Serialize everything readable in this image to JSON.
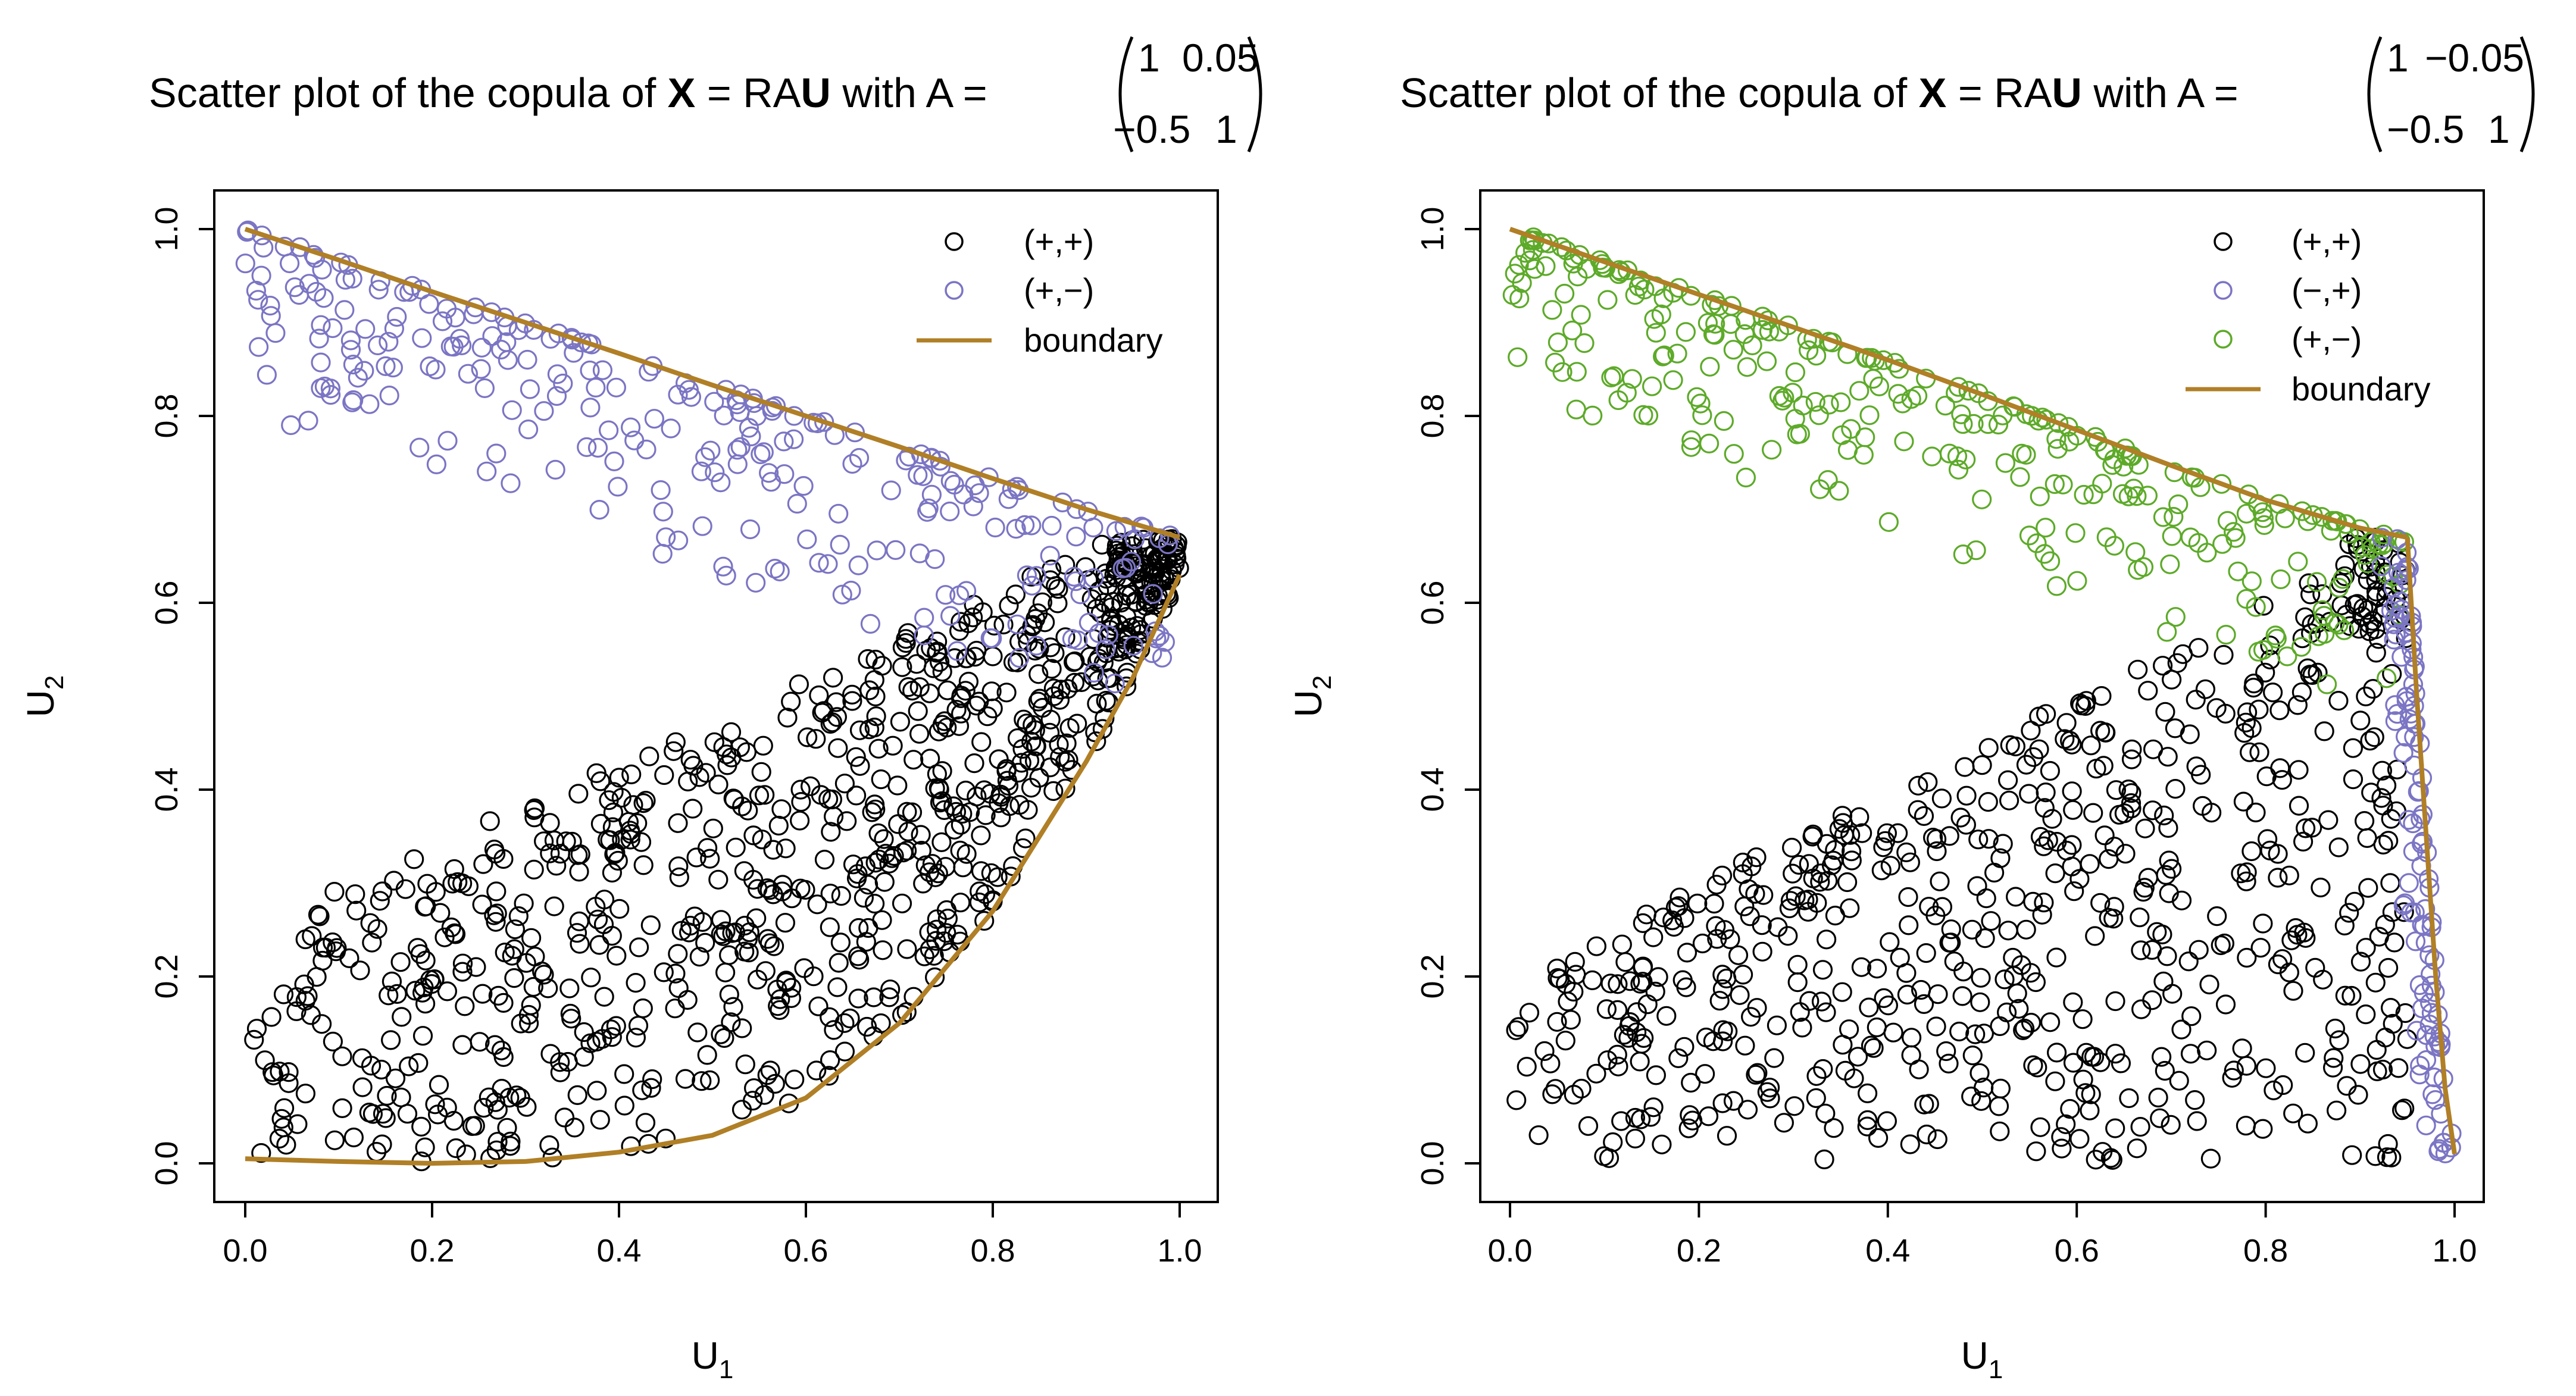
{
  "title": {
    "prefix": "Scatter plot of the copula of",
    "bold_x": "X",
    "eq_ra": "= RA",
    "bold_u": "U",
    "with_a": "with A ="
  },
  "legend_labels": {
    "pp": "(+,+)",
    "pm": "(+,−)",
    "mp": "(−,+)",
    "boundary": "boundary"
  },
  "colors": {
    "black": "#000000",
    "purple": "#7b75c4",
    "green": "#5daa29",
    "boundary": "#b07f26"
  },
  "chart_data": [
    {
      "type": "scatter",
      "title": "Scatter plot of the copula of X = RAU with A = (1 0.05; −0.5 1)",
      "matrix": {
        "a11": "1",
        "a12": "0.05",
        "a21": "−0.5",
        "a22": "1"
      },
      "xlabel": "U",
      "xlabel_sub": "1",
      "ylabel": "U",
      "ylabel_sub": "2",
      "xlim": [
        0,
        1
      ],
      "ylim": [
        0,
        1
      ],
      "xticks": [
        "0.0",
        "0.2",
        "0.4",
        "0.6",
        "0.8",
        "1.0"
      ],
      "yticks": [
        "0.0",
        "0.2",
        "0.4",
        "0.6",
        "0.8",
        "1.0"
      ],
      "legend": "top-right",
      "series": [
        {
          "name": "(+,+)",
          "kind": "points",
          "color": "black",
          "n": 800
        },
        {
          "name": "(+,−)",
          "kind": "points",
          "color": "purple",
          "n": 280
        },
        {
          "name": "boundary",
          "kind": "line",
          "color": "boundary"
        }
      ],
      "boundary_upper": [
        [
          0.0,
          1.0
        ],
        [
          0.1,
          0.967
        ],
        [
          0.2,
          0.933
        ],
        [
          0.3,
          0.9
        ],
        [
          0.4,
          0.867
        ],
        [
          0.5,
          0.833
        ],
        [
          0.6,
          0.8
        ],
        [
          0.7,
          0.767
        ],
        [
          0.8,
          0.733
        ],
        [
          0.9,
          0.7
        ],
        [
          1.0,
          0.67
        ]
      ],
      "boundary_lower": [
        [
          0.0,
          0.005
        ],
        [
          0.1,
          0.002
        ],
        [
          0.2,
          0.0
        ],
        [
          0.3,
          0.002
        ],
        [
          0.4,
          0.012
        ],
        [
          0.5,
          0.03
        ],
        [
          0.6,
          0.07
        ],
        [
          0.7,
          0.15
        ],
        [
          0.8,
          0.27
        ],
        [
          0.9,
          0.43
        ],
        [
          0.95,
          0.52
        ],
        [
          1.0,
          0.63
        ]
      ]
    },
    {
      "type": "scatter",
      "title": "Scatter plot of the copula of X = RAU with A = (1 −0.05; −0.5 1)",
      "matrix": {
        "a11": "1",
        "a12": "−0.05",
        "a21": "−0.5",
        "a22": "1"
      },
      "xlabel": "U",
      "xlabel_sub": "1",
      "ylabel": "U",
      "ylabel_sub": "2",
      "xlim": [
        0,
        1
      ],
      "ylim": [
        0,
        1
      ],
      "xticks": [
        "0.0",
        "0.2",
        "0.4",
        "0.6",
        "0.8",
        "1.0"
      ],
      "yticks": [
        "0.0",
        "0.2",
        "0.4",
        "0.6",
        "0.8",
        "1.0"
      ],
      "legend": "top-right",
      "series": [
        {
          "name": "(+,+)",
          "kind": "points",
          "color": "black",
          "n": 620
        },
        {
          "name": "(−,+)",
          "kind": "points",
          "color": "purple",
          "n": 110
        },
        {
          "name": "(+,−)",
          "kind": "points",
          "color": "green",
          "n": 300
        },
        {
          "name": "boundary",
          "kind": "line",
          "color": "boundary"
        }
      ],
      "boundary_upper": [
        [
          0.0,
          1.0
        ],
        [
          0.1,
          0.965
        ],
        [
          0.2,
          0.93
        ],
        [
          0.3,
          0.895
        ],
        [
          0.4,
          0.86
        ],
        [
          0.5,
          0.823
        ],
        [
          0.6,
          0.785
        ],
        [
          0.7,
          0.747
        ],
        [
          0.8,
          0.71
        ],
        [
          0.9,
          0.68
        ],
        [
          0.95,
          0.67
        ]
      ],
      "boundary_right": [
        [
          0.95,
          0.67
        ],
        [
          0.96,
          0.5
        ],
        [
          0.97,
          0.35
        ],
        [
          0.98,
          0.2
        ],
        [
          0.99,
          0.08
        ],
        [
          1.0,
          0.01
        ]
      ]
    }
  ]
}
